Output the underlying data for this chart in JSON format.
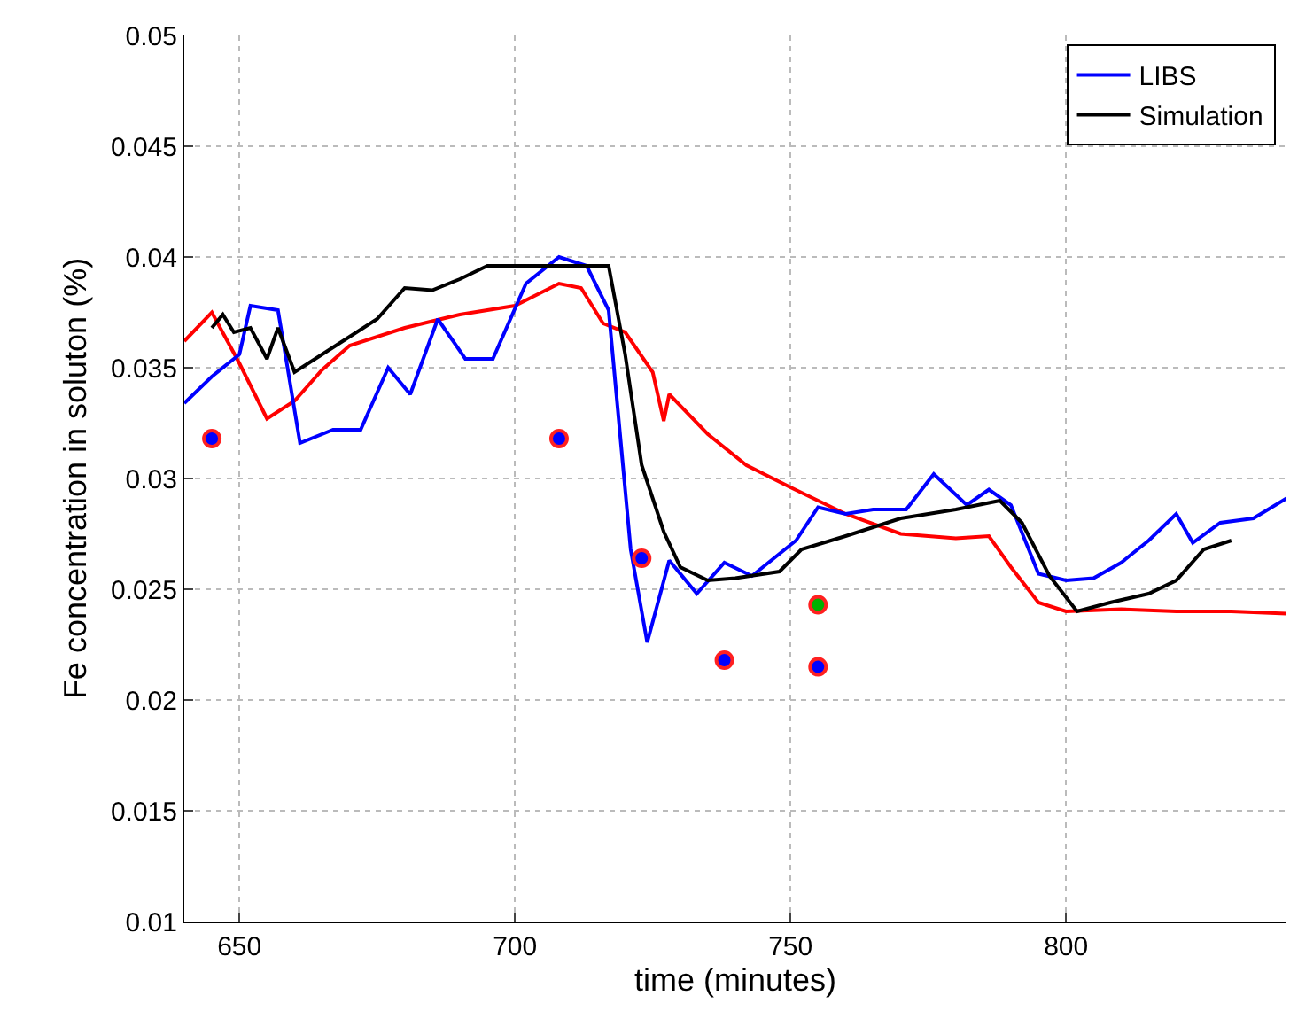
{
  "chart_data": {
    "type": "line",
    "xlabel": "time (minutes)",
    "ylabel": "Fe concentration in soluton (%)",
    "xlim": [
      640,
      840
    ],
    "xticks": [
      650,
      700,
      750,
      800
    ],
    "ylim": [
      0.01,
      0.05
    ],
    "yticks": [
      0.01,
      0.015,
      0.02,
      0.025,
      0.03,
      0.035,
      0.04,
      0.045,
      0.05
    ],
    "grid": true,
    "legend": "top right",
    "line_style": "solid",
    "series": [
      {
        "color": "#ff0000",
        "x": [
          640,
          645,
          650,
          655,
          660,
          665,
          670,
          680,
          690,
          700,
          708,
          712,
          716,
          720,
          725,
          727,
          728,
          735,
          742,
          750,
          760,
          770,
          780,
          786,
          790,
          795,
          800,
          810,
          820,
          830,
          840
        ],
        "values": [
          0.0362,
          0.0375,
          0.0352,
          0.0327,
          0.0335,
          0.0349,
          0.036,
          0.0368,
          0.0374,
          0.0378,
          0.0388,
          0.0386,
          0.037,
          0.0366,
          0.0348,
          0.0326,
          0.0338,
          0.032,
          0.0306,
          0.0296,
          0.0284,
          0.0275,
          0.0273,
          0.0274,
          0.026,
          0.0244,
          0.024,
          0.0241,
          0.024,
          0.024,
          0.0239
        ]
      },
      {
        "name": "LIBS",
        "color": "#0000ff",
        "x": [
          640,
          645,
          650,
          652,
          657,
          661,
          667,
          672,
          677,
          681,
          686,
          691,
          696,
          702,
          708,
          713,
          717,
          721,
          724,
          728,
          733,
          738,
          743,
          748,
          751,
          755,
          760,
          765,
          771,
          776,
          782,
          786,
          790,
          795,
          800,
          805,
          810,
          815,
          820,
          823,
          828,
          834,
          840
        ],
        "values": [
          0.0334,
          0.0346,
          0.0356,
          0.0378,
          0.0376,
          0.0316,
          0.0322,
          0.0322,
          0.035,
          0.0338,
          0.0372,
          0.0354,
          0.0354,
          0.0388,
          0.04,
          0.0396,
          0.0376,
          0.0268,
          0.0226,
          0.0263,
          0.0248,
          0.0262,
          0.0256,
          0.0266,
          0.0272,
          0.0287,
          0.0284,
          0.0286,
          0.0286,
          0.0302,
          0.0288,
          0.0295,
          0.0288,
          0.0257,
          0.0254,
          0.0255,
          0.0262,
          0.0272,
          0.0284,
          0.0271,
          0.028,
          0.0282,
          0.0291
        ]
      },
      {
        "type": "scatter",
        "color": "#0000ff",
        "x": [
          645,
          708,
          723,
          738,
          755
        ],
        "values": [
          0.0318,
          0.0318,
          0.0264,
          0.0218,
          0.0215
        ]
      },
      {
        "type": "scatter",
        "color": "#00b000",
        "x": [
          755
        ],
        "values": [
          0.0243
        ]
      },
      {
        "name": "Simulation",
        "color": "#000000",
        "x": [
          645,
          647,
          649,
          652,
          655,
          657,
          660,
          665,
          670,
          675,
          680,
          685,
          690,
          695,
          700,
          710,
          717,
          720,
          723,
          727,
          730,
          735,
          740,
          748,
          752,
          760,
          770,
          780,
          788,
          792,
          797,
          802,
          808,
          815,
          820,
          825,
          830
        ],
        "values": [
          0.0368,
          0.0374,
          0.0366,
          0.0368,
          0.0354,
          0.0368,
          0.0348,
          0.0356,
          0.0364,
          0.0372,
          0.0386,
          0.0385,
          0.039,
          0.0396,
          0.0396,
          0.0396,
          0.0396,
          0.0356,
          0.0306,
          0.0276,
          0.026,
          0.0254,
          0.0255,
          0.0258,
          0.0268,
          0.0274,
          0.0282,
          0.0286,
          0.029,
          0.028,
          0.0256,
          0.024,
          0.0244,
          0.0248,
          0.0254,
          0.0268,
          0.0272
        ]
      }
    ]
  }
}
